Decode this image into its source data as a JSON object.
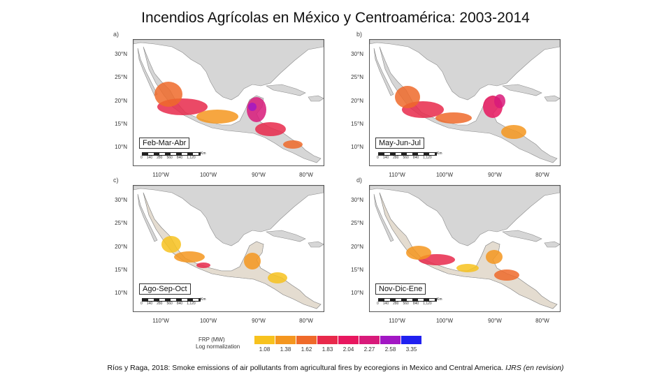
{
  "title": "Incendios Agrícolas en México y Centroamérica: 2003-2014",
  "panels": [
    {
      "letter": "a)",
      "season": "Feb-Mar-Abr",
      "scale_ticks": [
        "0",
        "140",
        "280",
        "560",
        "840",
        "1,120"
      ],
      "scale_unit": "Km"
    },
    {
      "letter": "b)",
      "season": "May-Jun-Jul",
      "scale_ticks": [
        "0",
        "140",
        "280",
        "560",
        "840",
        "1,120"
      ],
      "scale_unit": "Km"
    },
    {
      "letter": "c)",
      "season": "Ago-Sep-Oct",
      "scale_ticks": [
        "0",
        "140",
        "280",
        "560",
        "840",
        "1,120"
      ],
      "scale_unit": "Km"
    },
    {
      "letter": "d)",
      "season": "Nov-Dic-Ene",
      "scale_ticks": [
        "0",
        "140",
        "280",
        "560",
        "840",
        "1,120"
      ],
      "scale_unit": "Km"
    }
  ],
  "lat_labels": [
    "30°N",
    "25°N",
    "20°N",
    "15°N",
    "10°N"
  ],
  "lon_labels": [
    "110°W",
    "100°W",
    "90°W",
    "80°W"
  ],
  "legend": {
    "title": "FRP (MW)",
    "subtitle": "Log normalization",
    "ticks": [
      "1.08",
      "1.38",
      "1.62",
      "1.83",
      "2.04",
      "2.27",
      "2.58",
      "3.35"
    ],
    "colors": [
      "#f7c21e",
      "#f4961f",
      "#ef6a2a",
      "#e8294b",
      "#e8175f",
      "#d81a7a",
      "#a217c4",
      "#2020f0"
    ]
  },
  "citation": {
    "text": "Ríos y Raga, 2018: Smoke emissions of air pollutants from agricultural fires by ecoregions in Mexico and Central America.",
    "journal": "IJRS (en revision)"
  }
}
